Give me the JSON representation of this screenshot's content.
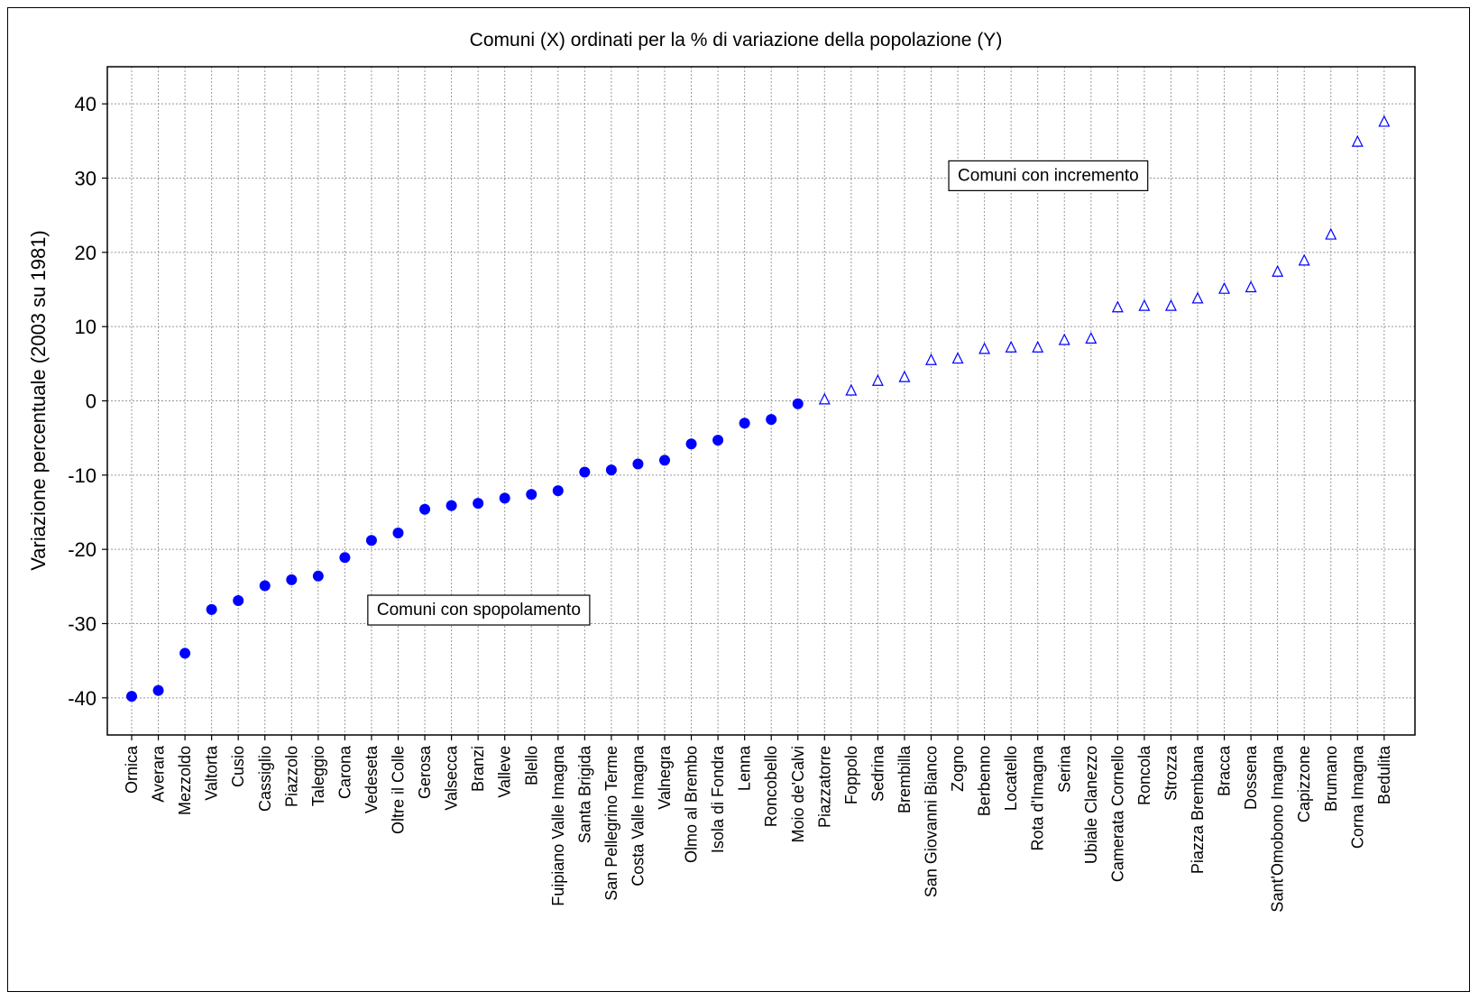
{
  "chart_data": {
    "type": "scatter",
    "title": "Comuni (X) ordinati per la % di variazione della popolazione (Y)",
    "xlabel": "",
    "ylabel": "Variazione percentuale (2003 su 1981)",
    "ylim": [
      -45,
      45
    ],
    "yticks": [
      40,
      30,
      20,
      10,
      0,
      -10,
      -20,
      -30,
      -40
    ],
    "grid": true,
    "categories": [
      "Ornica",
      "Averara",
      "Mezzoldo",
      "Valtorta",
      "Cusio",
      "Cassiglio",
      "Piazzolo",
      "Taleggio",
      "Carona",
      "Vedeseta",
      "Oltre il Colle",
      "Gerosa",
      "Valsecca",
      "Branzi",
      "Valleve",
      "Blello",
      "Fuipiano Valle Imagna",
      "Santa Brigida",
      "San Pellegrino Terme",
      "Costa Valle Imagna",
      "Valnegra",
      "Olmo al Brembo",
      "Isola di Fondra",
      "Lenna",
      "Roncobello",
      "Moio de'Calvi",
      "Piazzatorre",
      "Foppolo",
      "Sedrina",
      "Brembilla",
      "San Giovanni Bianco",
      "Zogno",
      "Berbenno",
      "Locatello",
      "Rota d'Imagna",
      "Serina",
      "Ubiale Clanezzo",
      "Camerata Cornello",
      "Roncola",
      "Strozza",
      "Piazza Brembana",
      "Bracca",
      "Dossena",
      "Sant'Omobono Imagna",
      "Capizzone",
      "Brumano",
      "Corna Imagna",
      "Bedulita"
    ],
    "series": [
      {
        "marker": "filled-circle",
        "color": "#0000ff",
        "values": [
          -39.8,
          -39,
          -34,
          -28.1,
          -26.9,
          -24.9,
          -24.1,
          -23.6,
          -21.1,
          -18.8,
          -17.8,
          -14.6,
          -14.1,
          -13.8,
          -13.1,
          -12.6,
          -12.1,
          -9.6,
          -9.3,
          -8.5,
          -8,
          -5.8,
          -5.3,
          -3,
          -2.5,
          -0.4
        ]
      },
      {
        "marker": "open-triangle",
        "color": "#0000ff",
        "values": [
          0.2,
          1.4,
          2.7,
          3.2,
          5.5,
          5.7,
          7,
          7.2,
          7.2,
          8.2,
          8.4,
          12.6,
          12.8,
          12.8,
          13.8,
          15.1,
          15.3,
          17.4,
          18.9,
          22.4,
          34.9,
          37.6
        ]
      }
    ],
    "annotations": [
      {
        "text": "Comuni con incremento",
        "x_index": 31,
        "y": 30.5
      },
      {
        "text": "Comuni con spopolamento",
        "x_index": 9.2,
        "y": -28
      }
    ]
  }
}
